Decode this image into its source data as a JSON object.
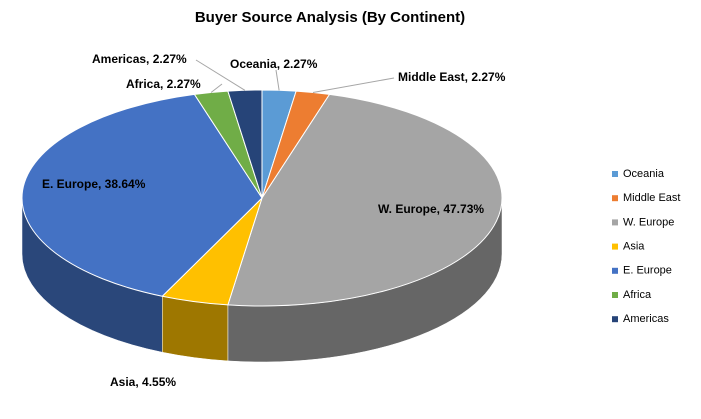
{
  "chart_data": {
    "type": "pie",
    "title": "Buyer Source Analysis (By Continent)",
    "categories": [
      "Oceania",
      "Middle East",
      "W. Europe",
      "Asia",
      "E. Europe",
      "Africa",
      "Americas"
    ],
    "values": [
      2.27,
      2.27,
      47.73,
      4.55,
      38.64,
      2.27,
      2.27
    ],
    "value_labels": [
      "Oceania, 2.27%",
      "Middle East, 2.27%",
      "W. Europe, 47.73%",
      "Asia, 4.55%",
      "E. Europe, 38.64%",
      "Africa, 2.27%",
      "Americas, 2.27%"
    ],
    "colors": [
      "#5b9bd5",
      "#ed7d31",
      "#a5a5a5",
      "#ffc000",
      "#4472c4",
      "#70ad47",
      "#264478"
    ],
    "legend": "right"
  }
}
